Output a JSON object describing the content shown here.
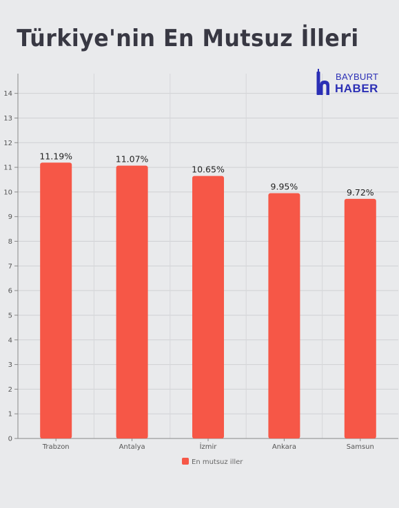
{
  "chart_data": {
    "type": "bar",
    "title": "Türkiye'nin En Mutsuz İlleri",
    "categories": [
      "Trabzon",
      "Antalya",
      "İzmir",
      "Ankara",
      "Samsun"
    ],
    "series": [
      {
        "name": "En mutsuz iller",
        "values": [
          11.19,
          11.07,
          10.65,
          9.95,
          9.72
        ],
        "labels": [
          "11.19%",
          "11.07%",
          "10.65%",
          "9.95%",
          "9.72%"
        ],
        "color": "#f65747"
      }
    ],
    "yticks": [
      "0",
      "1",
      "2",
      "3",
      "4",
      "5",
      "6",
      "7",
      "8",
      "9",
      "10",
      "11",
      "12",
      "13",
      "14"
    ],
    "ylim": [
      0,
      14.8
    ],
    "grid": true,
    "legend_position": "bottom"
  },
  "logo": {
    "top_text": "BAYBURT",
    "bottom_text": "HABER",
    "color": "#2b2fb5"
  }
}
